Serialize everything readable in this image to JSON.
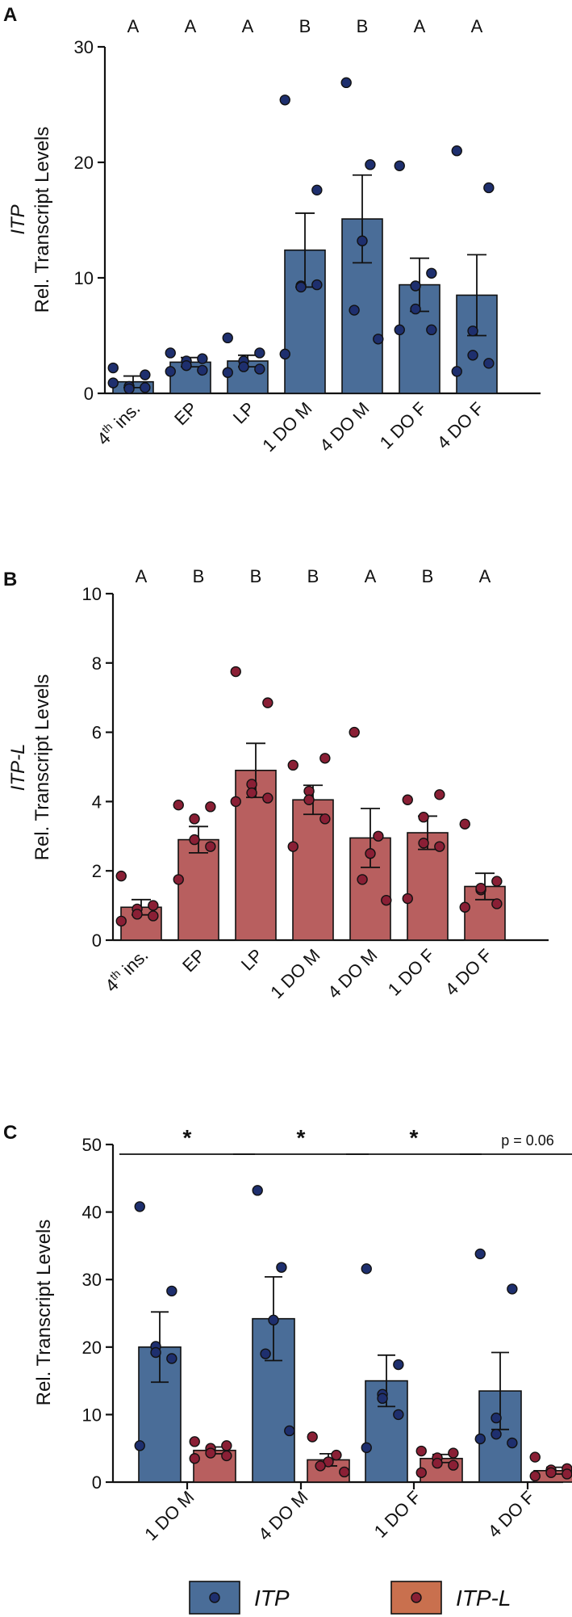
{
  "colors": {
    "itp_bar": "#4a6d98",
    "itpl_bar": "#b85f5f",
    "itp_dot": "#1e2f6e",
    "itpl_dot": "#8a1f35",
    "legend_itpl": "#c9704e"
  },
  "chart_data": [
    {
      "type": "bar",
      "panel": "A",
      "title": "",
      "ylabel_gene": "ITP",
      "ylabel": "Rel. Transcript Levels",
      "ylim": [
        0,
        30
      ],
      "yticks": [
        "0",
        "10",
        "20",
        "30"
      ],
      "categories": [
        "4th ins.",
        "EP",
        "LP",
        "1 DO M",
        "4 DO M",
        "1 DO F",
        "4 DO F"
      ],
      "category_labels": [
        {
          "main": "4",
          "sup": "th",
          "rest": " ins."
        },
        {
          "main": "EP",
          "sup": "",
          "rest": ""
        },
        {
          "main": "LP",
          "sup": "",
          "rest": ""
        },
        {
          "main": "1 DO M",
          "sup": "",
          "rest": ""
        },
        {
          "main": "4 DO M",
          "sup": "",
          "rest": ""
        },
        {
          "main": "1 DO F",
          "sup": "",
          "rest": ""
        },
        {
          "main": "4 DO F",
          "sup": "",
          "rest": ""
        }
      ],
      "significance": [
        "A",
        "A",
        "A",
        "B",
        "B",
        "A",
        "A"
      ],
      "series": [
        {
          "name": "ITP",
          "values": [
            1.0,
            2.7,
            2.8,
            12.4,
            15.1,
            9.4,
            8.5
          ],
          "sem": [
            0.5,
            0.4,
            0.5,
            3.2,
            3.8,
            2.3,
            3.5
          ],
          "points": [
            [
              2.2,
              1.6,
              0.6,
              0.4,
              0.5,
              0.9
            ],
            [
              3.5,
              3.0,
              2.8,
              2.4,
              2.0,
              1.9
            ],
            [
              4.8,
              3.5,
              2.8,
              2.3,
              2.1,
              1.8
            ],
            [
              25.4,
              17.6,
              9.3,
              9.2,
              9.4,
              3.4
            ],
            [
              26.9,
              19.8,
              13.2,
              7.2,
              4.7
            ],
            [
              19.7,
              10.4,
              9.3,
              7.3,
              5.5,
              5.5
            ],
            [
              21.0,
              17.8,
              5.4,
              3.3,
              2.6,
              1.9
            ]
          ]
        }
      ]
    },
    {
      "type": "bar",
      "panel": "B",
      "title": "",
      "ylabel_gene": "ITP-L",
      "ylabel": "Rel. Transcript Levels",
      "ylim": [
        0,
        10
      ],
      "yticks": [
        "0",
        "2",
        "4",
        "6",
        "8",
        "10"
      ],
      "categories": [
        "4th ins.",
        "EP",
        "LP",
        "1 DO M",
        "4 DO M",
        "1 DO F",
        "4 DO F"
      ],
      "category_labels": [
        {
          "main": "4",
          "sup": "th",
          "rest": " ins."
        },
        {
          "main": "EP",
          "sup": "",
          "rest": ""
        },
        {
          "main": "LP",
          "sup": "",
          "rest": ""
        },
        {
          "main": "1 DO M",
          "sup": "",
          "rest": ""
        },
        {
          "main": "4 DO M",
          "sup": "",
          "rest": ""
        },
        {
          "main": "1 DO F",
          "sup": "",
          "rest": ""
        },
        {
          "main": "4 DO F",
          "sup": "",
          "rest": ""
        }
      ],
      "significance": [
        "A",
        "B",
        "B",
        "B",
        "A",
        "B",
        "A"
      ],
      "series": [
        {
          "name": "ITP-L",
          "values": [
            0.95,
            2.9,
            4.9,
            4.05,
            2.95,
            3.1,
            1.55
          ],
          "sem": [
            0.22,
            0.38,
            0.78,
            0.42,
            0.85,
            0.48,
            0.38
          ],
          "points": [
            [
              1.85,
              1.0,
              0.9,
              0.75,
              0.7,
              0.55
            ],
            [
              3.9,
              3.85,
              3.5,
              2.9,
              2.7,
              1.75
            ],
            [
              7.75,
              6.85,
              4.5,
              4.25,
              4.1,
              4.0
            ],
            [
              5.05,
              5.25,
              4.3,
              4.05,
              3.5,
              2.7
            ],
            [
              6.0,
              3.0,
              2.5,
              1.75,
              1.15
            ],
            [
              4.05,
              4.2,
              3.55,
              2.8,
              2.7,
              1.2
            ],
            [
              3.35,
              1.7,
              1.45,
              1.5,
              1.05,
              0.95
            ]
          ]
        }
      ]
    },
    {
      "type": "bar",
      "panel": "C",
      "title": "",
      "ylabel": "Rel. Transcript Levels",
      "ylim": [
        0,
        50
      ],
      "yticks": [
        "0",
        "10",
        "20",
        "30",
        "40",
        "50"
      ],
      "categories": [
        "1 DO M",
        "4 DO M",
        "1 DO F",
        "4 DO F"
      ],
      "significance": [
        "*",
        "*",
        "*",
        "p = 0.06"
      ],
      "legend": [
        "ITP",
        "ITP-L"
      ],
      "legend_position": "bottom",
      "series": [
        {
          "name": "ITP",
          "values": [
            20.0,
            24.2,
            15.0,
            13.5
          ],
          "sem": [
            5.2,
            6.2,
            3.8,
            5.7
          ],
          "points": [
            [
              40.8,
              28.3,
              20.1,
              19.2,
              18.3,
              5.4
            ],
            [
              43.2,
              31.8,
              24.0,
              19.0,
              7.6
            ],
            [
              31.6,
              17.4,
              13.0,
              12.4,
              10.0,
              5.1
            ],
            [
              33.8,
              28.6,
              9.5,
              7.1,
              5.8,
              6.4
            ]
          ]
        },
        {
          "name": "ITP-L",
          "values": [
            4.7,
            3.3,
            3.5,
            1.7
          ],
          "sem": [
            0.5,
            0.9,
            0.6,
            0.5
          ],
          "points": [
            [
              6.0,
              5.4,
              5.0,
              4.3,
              3.9,
              3.5
            ],
            [
              6.7,
              4.0,
              3.0,
              2.4,
              1.5
            ],
            [
              4.6,
              4.3,
              3.6,
              2.8,
              2.5,
              1.4
            ],
            [
              3.7,
              2.0,
              1.8,
              1.4,
              1.2,
              0.9
            ]
          ]
        }
      ]
    }
  ]
}
